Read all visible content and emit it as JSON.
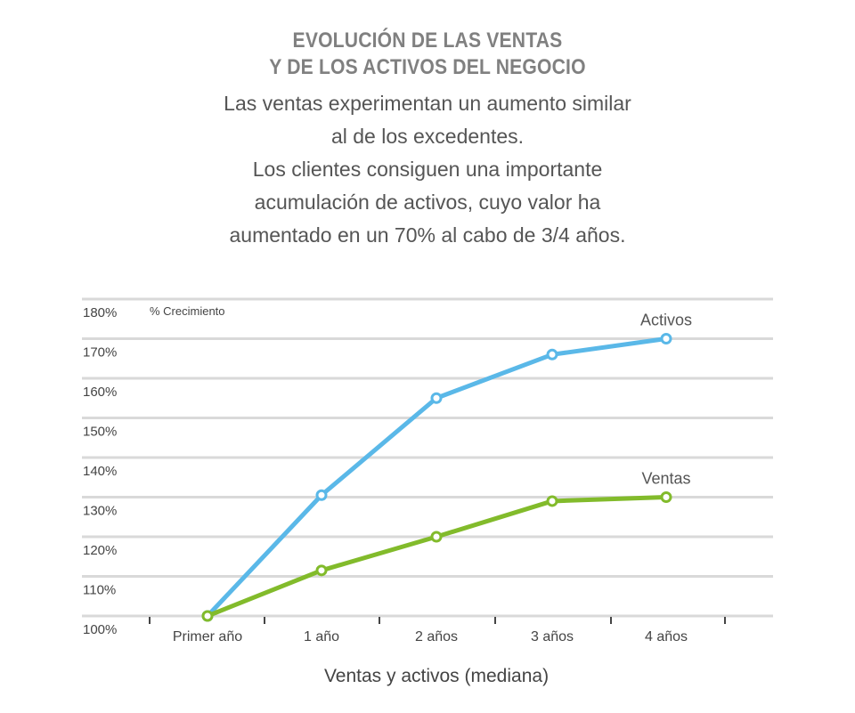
{
  "title_lines": [
    "EVOLUCIÓN DE LAS VENTAS",
    "Y DE LOS ACTIVOS DEL NEGOCIO"
  ],
  "subtitle_lines": [
    "Las ventas experimentan un aumento similar",
    "al de los excedentes.",
    "Los clientes consiguen una importante",
    "acumulación de activos, cuyo valor ha",
    "aumentado en un 70% al cabo de 3/4 años."
  ],
  "colors": {
    "activos": "#5ab8e8",
    "ventas": "#82bb2b",
    "grid": "#d9d9d9"
  },
  "chart_data": {
    "type": "line",
    "title": "EVOLUCIÓN DE LAS VENTAS Y DE LOS ACTIVOS DEL NEGOCIO",
    "xlabel": "Ventas y activos (mediana)",
    "ylabel": "% Crecimiento",
    "categories": [
      "Primer año",
      "1 año",
      "2 años",
      "3 años",
      "4 años"
    ],
    "ylim": [
      100,
      180
    ],
    "yticks": [
      "100%",
      "110%",
      "120%",
      "130%",
      "140%",
      "150%",
      "160%",
      "170%",
      "180%"
    ],
    "grid": true,
    "series": [
      {
        "name": "Activos",
        "values": [
          100,
          130.5,
          155,
          166,
          170
        ]
      },
      {
        "name": "Ventas",
        "values": [
          100,
          111.5,
          120,
          129,
          130
        ]
      }
    ]
  }
}
